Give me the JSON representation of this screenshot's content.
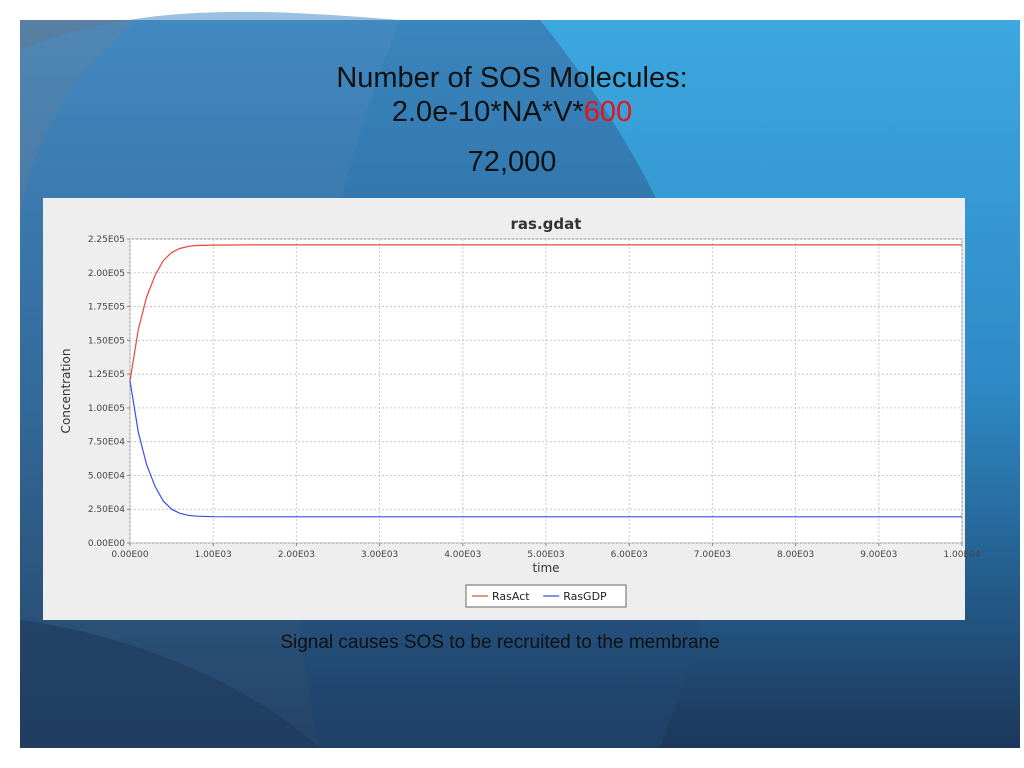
{
  "slide": {
    "title_line1": "Number of SOS Molecules:",
    "title_line2_prefix": "2.0e-10*NA*V*",
    "title_line2_highlight": "600",
    "title_line3": "72,000",
    "caption": "Signal causes SOS to be recruited to the membrane",
    "colors": {
      "highlight": "#e2141c",
      "background": "#2f6a98"
    }
  },
  "chart_data": {
    "type": "line",
    "title": "ras.gdat",
    "xlabel": "time",
    "ylabel": "Concentration",
    "xlim": [
      0,
      10000
    ],
    "ylim": [
      0,
      225000
    ],
    "x_ticks": [
      "0.00E00",
      "1.00E03",
      "2.00E03",
      "3.00E03",
      "4.00E03",
      "5.00E03",
      "6.00E03",
      "7.00E03",
      "8.00E03",
      "9.00E03",
      "1.00E04"
    ],
    "x_tick_values": [
      0,
      1000,
      2000,
      3000,
      4000,
      5000,
      6000,
      7000,
      8000,
      9000,
      10000
    ],
    "y_ticks": [
      "0.00E00",
      "2.50E04",
      "5.00E04",
      "7.50E04",
      "1.00E05",
      "1.25E05",
      "1.50E05",
      "1.75E05",
      "2.00E05",
      "2.25E05"
    ],
    "y_tick_values": [
      0,
      25000,
      50000,
      75000,
      100000,
      125000,
      150000,
      175000,
      200000,
      225000
    ],
    "grid": true,
    "legend_position": "bottom",
    "x": [
      0,
      100,
      200,
      300,
      400,
      500,
      600,
      700,
      800,
      1000,
      1500,
      2000,
      3000,
      4000,
      5000,
      6000,
      7000,
      8000,
      9000,
      10000
    ],
    "series": [
      {
        "name": "RasAct",
        "color": "#e8473c",
        "values": [
          120000,
          158000,
          182000,
          198000,
          209000,
          215000,
          218000,
          219500,
          220200,
          220500,
          220600,
          220600,
          220600,
          220600,
          220600,
          220600,
          220600,
          220600,
          220600,
          220600
        ]
      },
      {
        "name": "RasGDP",
        "color": "#3b4ee6",
        "values": [
          120000,
          82000,
          58000,
          42000,
          31000,
          25000,
          22000,
          20500,
          19800,
          19500,
          19400,
          19400,
          19400,
          19400,
          19400,
          19400,
          19400,
          19400,
          19400,
          19400
        ]
      }
    ]
  }
}
